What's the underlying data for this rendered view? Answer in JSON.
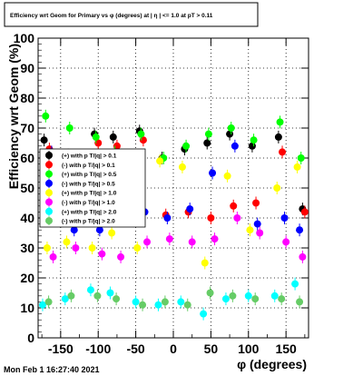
{
  "title": "Efficiency wrt Geom for Primary vs φ (degrees) at | η | <= 1.0 at pT > 0.11",
  "timestamp": "Mon Feb  1 16:27:40 2021",
  "chart_data": {
    "type": "scatter",
    "title": "Efficiency wrt Geom for Primary vs φ (degrees) at | η | <= 1.0 at pT > 0.11",
    "xlabel": "φ (degrees)",
    "ylabel": "Efficiency wrt Geom (%)",
    "xlim": [
      -180,
      180
    ],
    "ylim": [
      0,
      100
    ],
    "x_ticks": [
      -150,
      -100,
      -50,
      0,
      50,
      100,
      150
    ],
    "y_ticks": [
      0,
      10,
      20,
      30,
      40,
      50,
      60,
      70,
      80,
      90,
      100
    ],
    "grid": true,
    "legend_position": "middle-left",
    "series": [
      {
        "name": "(+) with p T/|q| > 0.1",
        "color": "#000000",
        "x": [
          -172,
          -140,
          -105,
          -80,
          -45,
          -15,
          15,
          45,
          75,
          105,
          140,
          172
        ],
        "y": [
          66,
          61,
          68,
          67,
          69,
          60,
          63,
          65,
          68,
          64,
          67,
          43
        ]
      },
      {
        "name": "(-) with p T/|q| > 0.1",
        "color": "#ff0000",
        "x": [
          -165,
          -135,
          -100,
          -75,
          -40,
          -10,
          20,
          50,
          80,
          110,
          145,
          175
        ],
        "y": [
          63,
          58,
          65,
          64,
          66,
          41,
          42,
          40,
          44,
          45,
          62,
          42
        ]
      },
      {
        "name": "(+) with p T/|q| > 0.5",
        "color": "#00ff00",
        "x": [
          -170,
          -138,
          -103,
          -78,
          -43,
          -13,
          17,
          47,
          77,
          107,
          142,
          170
        ],
        "y": [
          74,
          70,
          67,
          62,
          68,
          60,
          64,
          68,
          70,
          66,
          72,
          60
        ]
      },
      {
        "name": "(-) with p T/|q| > 0.5",
        "color": "#0000ff",
        "x": [
          -162,
          -132,
          -98,
          -72,
          -38,
          -8,
          22,
          52,
          82,
          112,
          148,
          168
        ],
        "y": [
          62,
          36,
          36,
          44,
          42,
          40,
          43,
          55,
          64,
          38,
          40,
          36
        ]
      },
      {
        "name": "(+) with p T/|q| > 1.0",
        "color": "#ffff00",
        "x": [
          -168,
          -142,
          -108,
          -82,
          -48,
          -18,
          12,
          42,
          72,
          102,
          138,
          165
        ],
        "y": [
          30,
          32,
          30,
          35,
          30,
          59,
          57,
          25,
          54,
          36,
          50,
          57
        ]
      },
      {
        "name": "(-) with p T/|q| > 1.0",
        "color": "#ff00ff",
        "x": [
          -160,
          -130,
          -95,
          -70,
          -35,
          -5,
          25,
          55,
          85,
          115,
          150,
          172
        ],
        "y": [
          27,
          30,
          28,
          27,
          32,
          33,
          32,
          33,
          40,
          35,
          32,
          27
        ]
      },
      {
        "name": "(+) with p T/|q| > 2.0",
        "color": "#00ffff",
        "x": [
          -174,
          -144,
          -110,
          -84,
          -50,
          -20,
          10,
          40,
          70,
          100,
          135,
          162
        ],
        "y": [
          11,
          13,
          16,
          15,
          12,
          11,
          12,
          8,
          13,
          14,
          14,
          18
        ]
      },
      {
        "name": "(-) with p T/|q| > 2.0",
        "color": "#66cc66",
        "x": [
          -166,
          -136,
          -101,
          -76,
          -41,
          -11,
          19,
          49,
          79,
          109,
          144,
          168
        ],
        "y": [
          12,
          14,
          14,
          13,
          11,
          12,
          11,
          15,
          14,
          13,
          13,
          12
        ]
      }
    ]
  }
}
